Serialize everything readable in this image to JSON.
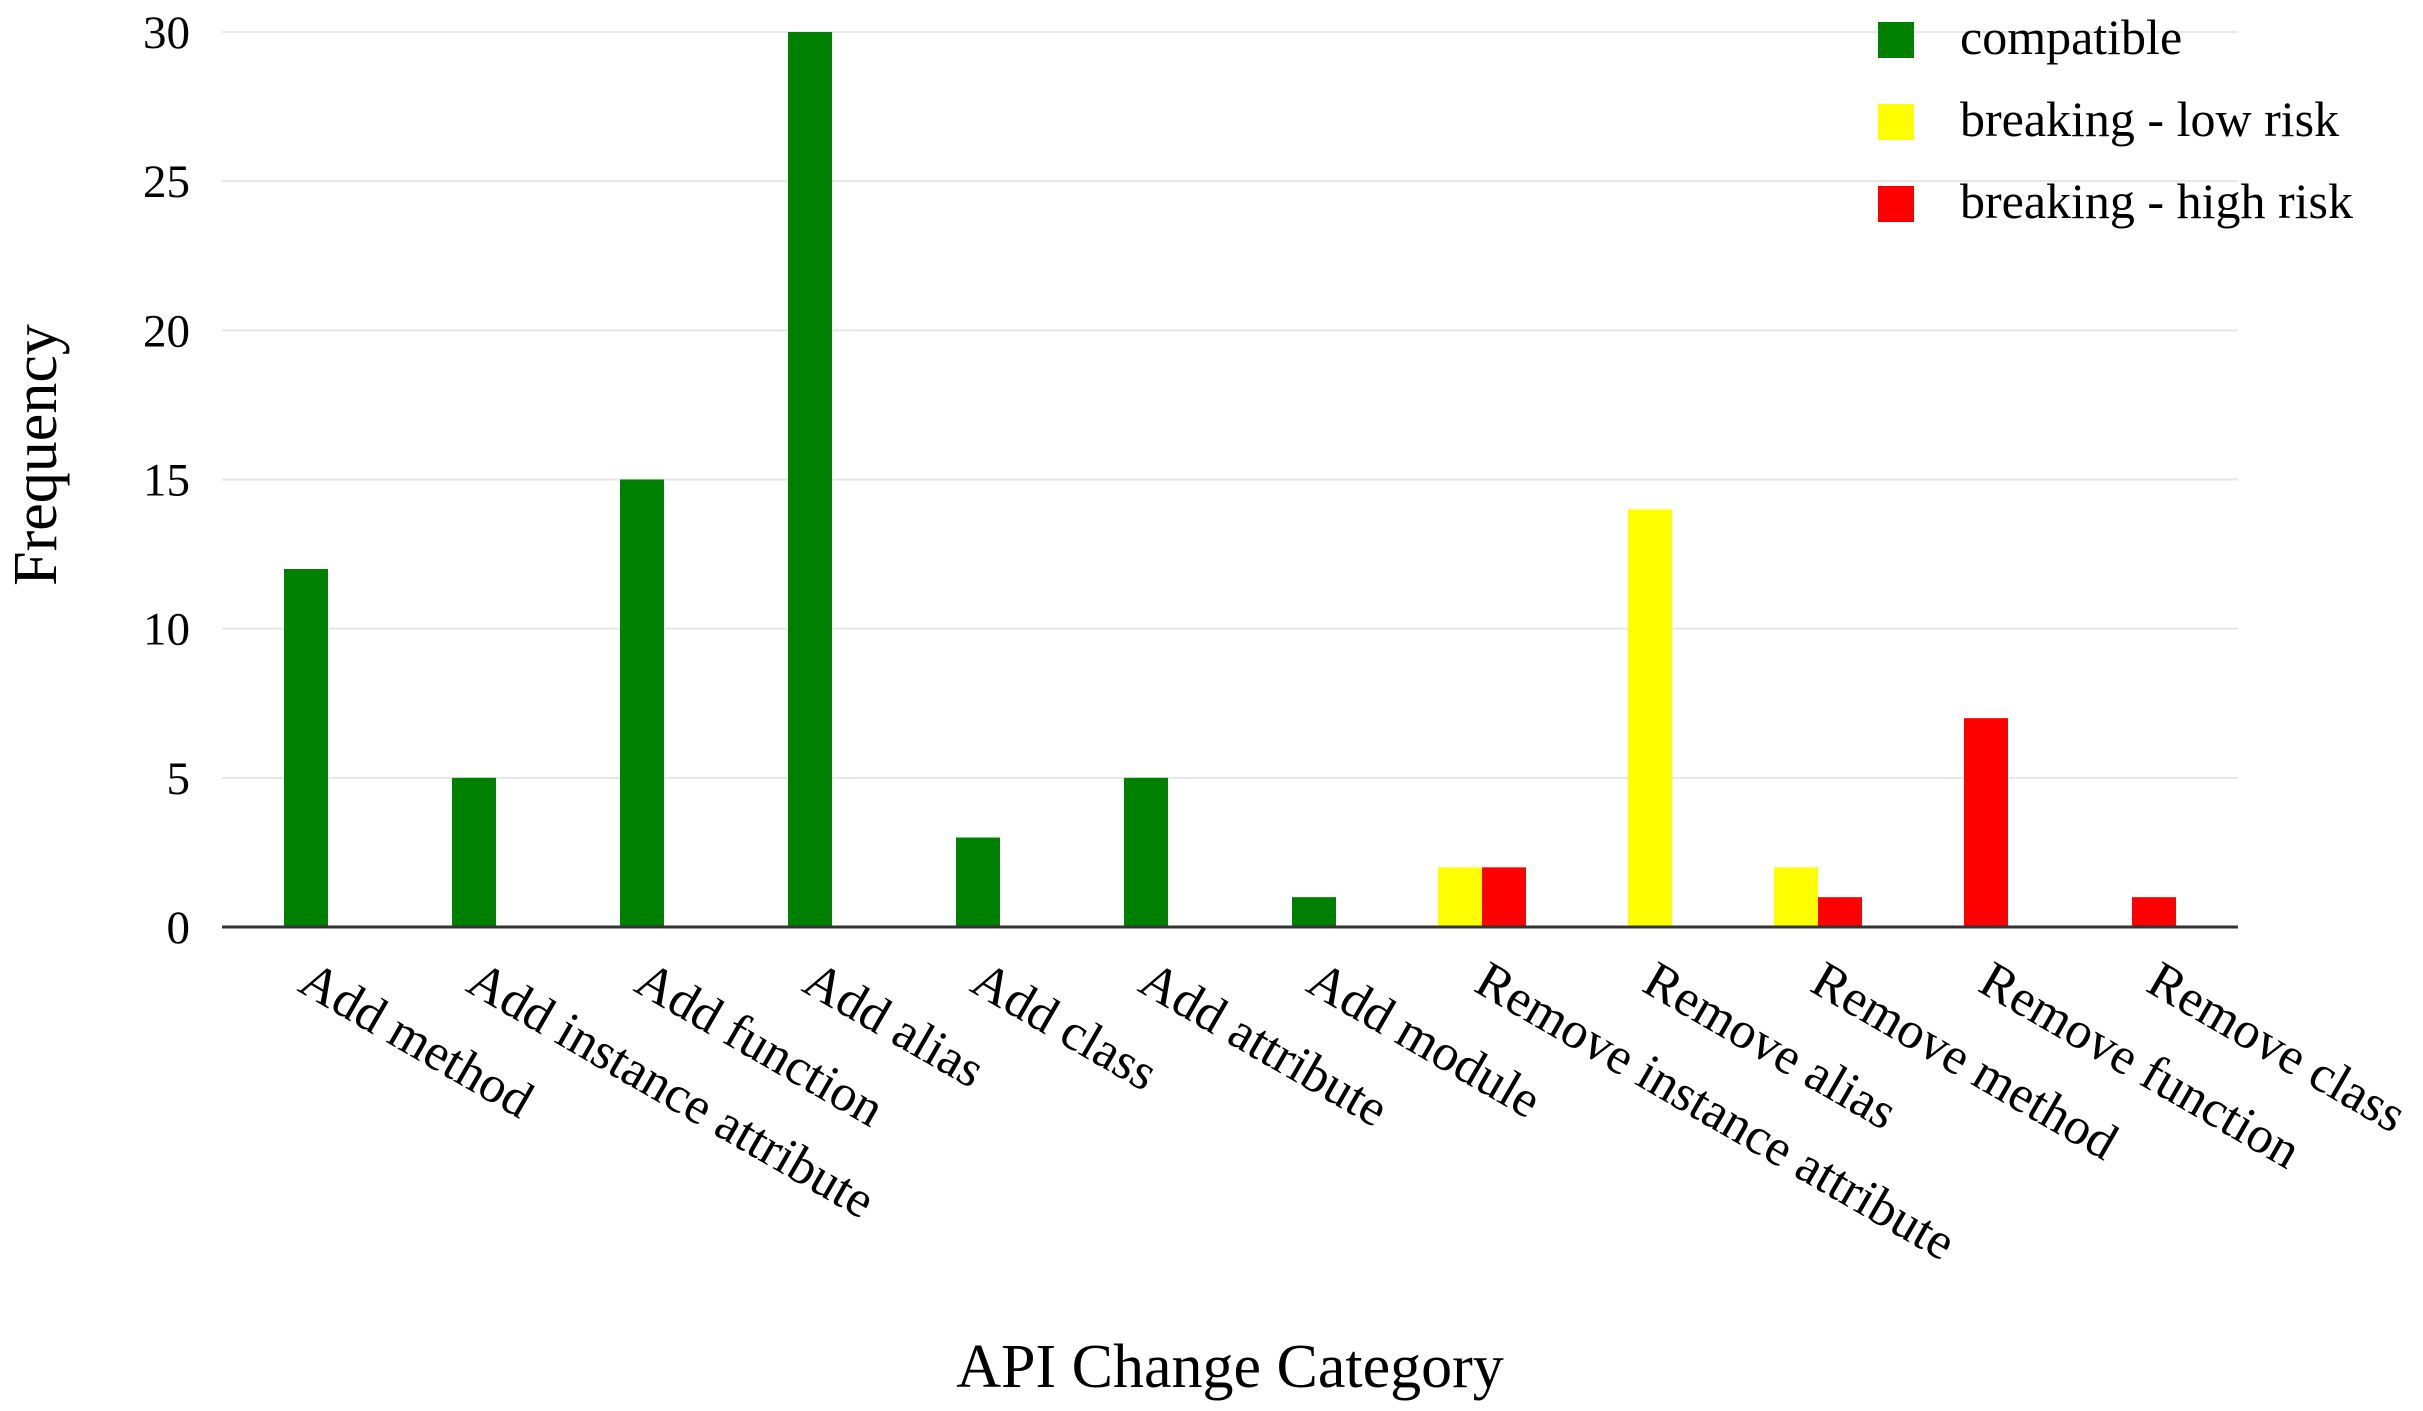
{
  "chart_data": {
    "type": "bar",
    "xlabel": "API Change Category",
    "ylabel": "Frequency",
    "ylim": [
      0,
      30
    ],
    "yticks": [
      0,
      5,
      10,
      15,
      20,
      25,
      30
    ],
    "grid": true,
    "legend_position": "top-right",
    "categories": [
      "Add method",
      "Add instance attribute",
      "Add function",
      "Add alias",
      "Add class",
      "Add attribute",
      "Add module",
      "Remove instance attribute",
      "Remove alias",
      "Remove method",
      "Remove function",
      "Remove class"
    ],
    "series": [
      {
        "name": "compatible",
        "color": "#008000",
        "values": [
          12,
          5,
          15,
          30,
          3,
          5,
          1,
          0,
          0,
          0,
          0,
          0
        ]
      },
      {
        "name": "breaking - low risk",
        "color": "#ffff00",
        "values": [
          0,
          0,
          0,
          0,
          0,
          0,
          0,
          2,
          14,
          2,
          0,
          0
        ]
      },
      {
        "name": "breaking - high risk",
        "color": "#ff0000",
        "values": [
          0,
          0,
          0,
          0,
          0,
          0,
          0,
          2,
          0,
          1,
          7,
          1
        ]
      }
    ]
  }
}
